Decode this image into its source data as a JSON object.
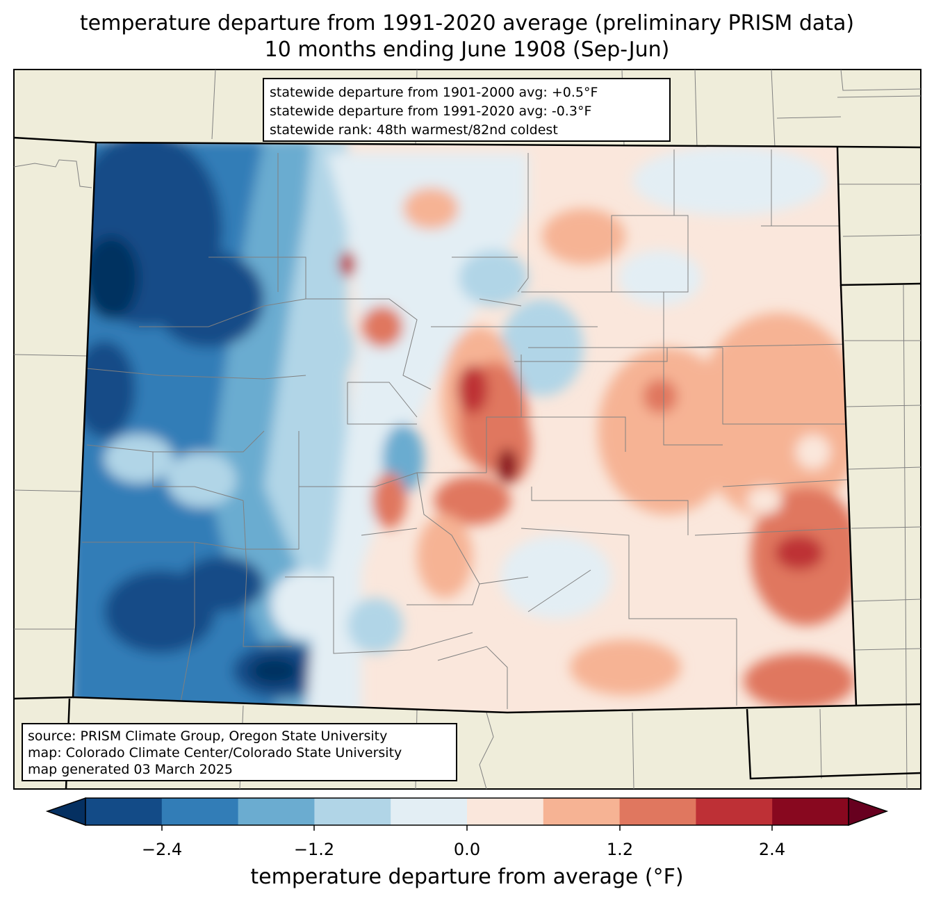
{
  "title": {
    "line1": "temperature departure from 1991-2020 average (preliminary PRISM data)",
    "line2": "10 months ending June 1908 (Sep-Jun)"
  },
  "stats": {
    "line1": "statewide departure from 1901-2000 avg: +0.5°F",
    "line2": "statewide departure from 1991-2020 avg: -0.3°F",
    "line3": "statewide rank: 48th warmest/82nd coldest"
  },
  "source": {
    "line1": "source: PRISM Climate Group, Oregon State University",
    "line2": "map: Colorado Climate Center/Colorado State University",
    "line3": "map generated 03 March 2025"
  },
  "colorbar": {
    "label": "temperature departure from average (°F)",
    "ticks": [
      "−2.4",
      "−1.2",
      "0.0",
      "1.2",
      "2.4"
    ],
    "colors": [
      "#053061",
      "#134b87",
      "#327db7",
      "#6bacd0",
      "#b1d5e7",
      "#e3eef4",
      "#fae7dc",
      "#f6b394",
      "#e0775f",
      "#be3036",
      "#88081f",
      "#67001f"
    ]
  },
  "colors": {
    "background_land": "#efedda",
    "county_lines": "#808080",
    "state_lines": "#000000"
  }
}
